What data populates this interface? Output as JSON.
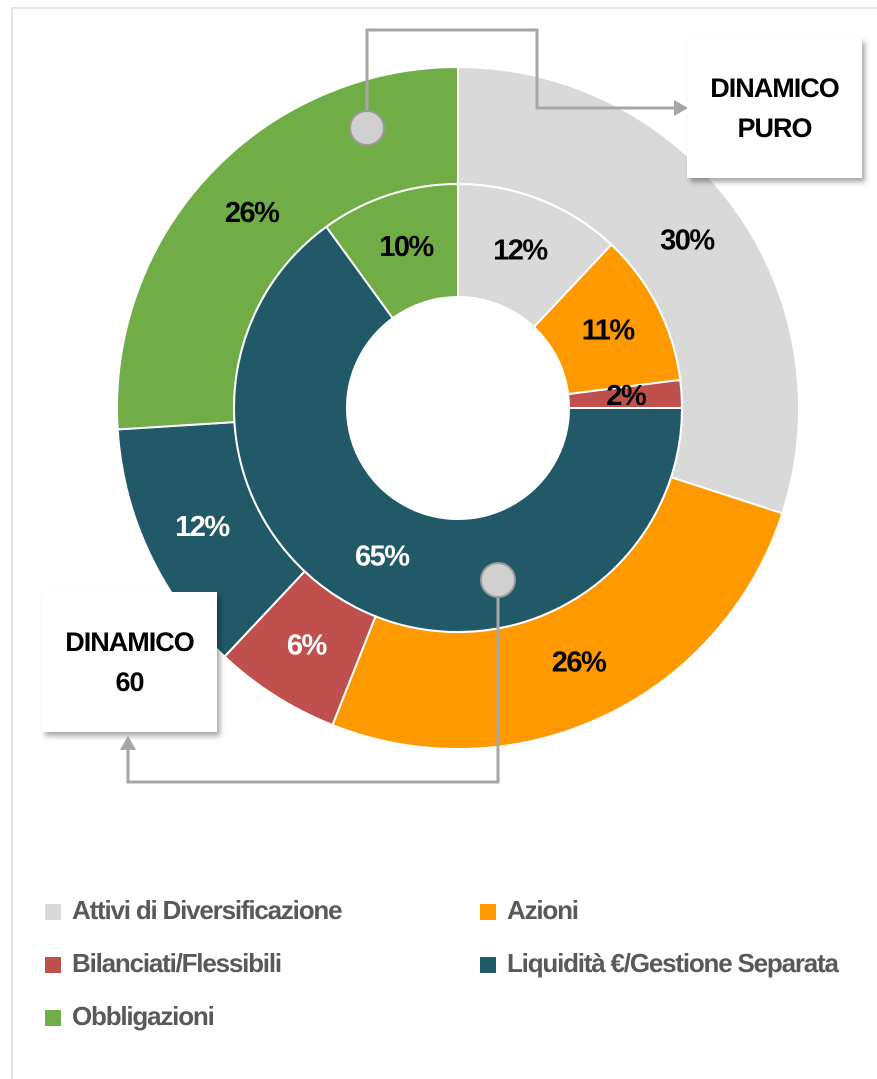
{
  "chart_data": {
    "type": "donut",
    "categories": [
      "Attivi di Diversificazione",
      "Azioni",
      "Bilanciati/Flessibili",
      "Liquidità €/Gestione Separata",
      "Obbligazioni"
    ],
    "colors": [
      "#d9d9d9",
      "#ff9900",
      "#c0504d",
      "#215968",
      "#70ad47"
    ],
    "series": [
      {
        "name": "DINAMICO PURO",
        "values": [
          30,
          26,
          6,
          12,
          26
        ],
        "value_labels": [
          "30%",
          "26%",
          "6%",
          "12%",
          "26%"
        ]
      },
      {
        "name": "DINAMICO 60",
        "values": [
          12,
          11,
          2,
          65,
          10
        ],
        "value_labels": [
          "12%",
          "11%",
          "2%",
          "65%",
          "10%"
        ]
      }
    ],
    "legend": "bottom"
  }
}
